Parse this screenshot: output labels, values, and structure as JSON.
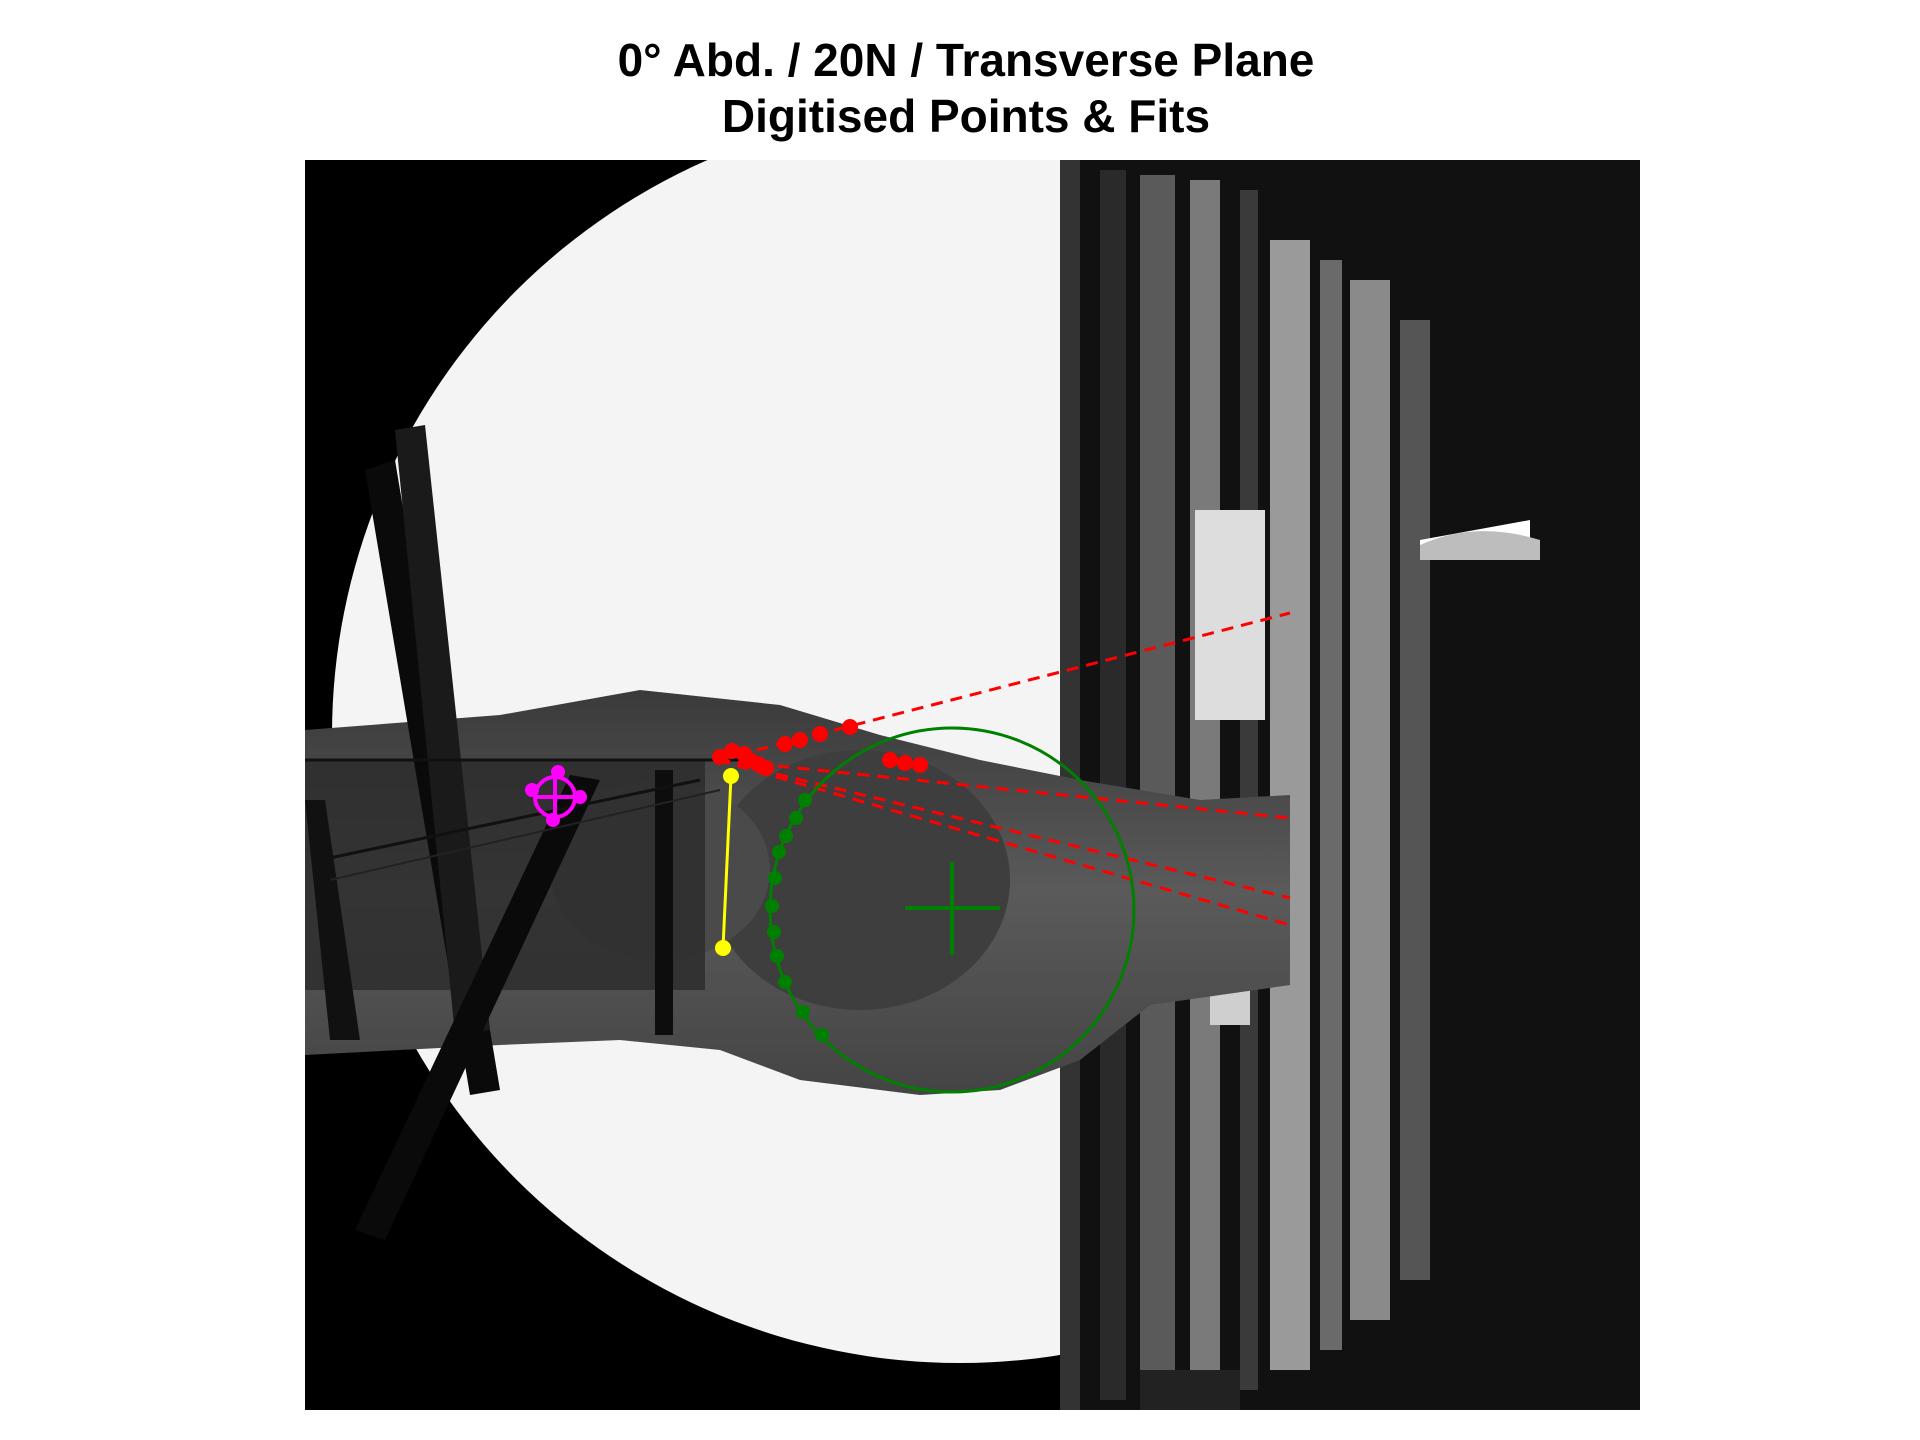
{
  "title": {
    "line1": "0° Abd. / 20N / Transverse Plane",
    "line2": "Digitised Points & Fits"
  },
  "colors": {
    "humeral_fit": "#008000",
    "glenoid_line": "#ffff00",
    "reference_marker": "#ff00ff",
    "fiber_lines": "#ff0000",
    "background_image": "#000000"
  },
  "legend": [],
  "image_content": "grayscale fluoroscopic x-ray of shoulder region with digitised point overlays"
}
